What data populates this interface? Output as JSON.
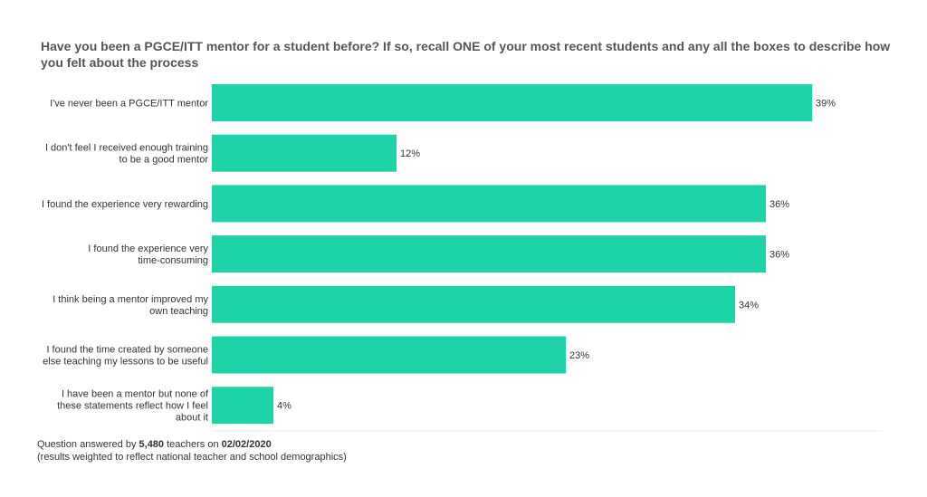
{
  "chart_data": {
    "type": "bar",
    "orientation": "horizontal",
    "title": "Have you been a PGCE/ITT mentor for a student before? If so, recall ONE of your most recent students and any all the boxes to describe how you felt about the process",
    "categories": [
      [
        "I've never been a PGCE/ITT mentor"
      ],
      [
        "I don't feel I received enough training",
        "to be a good mentor"
      ],
      [
        "I found the experience very rewarding"
      ],
      [
        "I found the experience very",
        "time-consuming"
      ],
      [
        "I think being a mentor improved my",
        "own teaching"
      ],
      [
        "I found the time created by someone",
        "else teaching my lessons to be useful"
      ],
      [
        "I have been a mentor but none of",
        "these statements reflect how I feel",
        "about it"
      ]
    ],
    "values": [
      39,
      12,
      36,
      36,
      34,
      23,
      4
    ],
    "value_labels": [
      "39%",
      "12%",
      "36%",
      "36%",
      "34%",
      "23%",
      "4%"
    ],
    "xlim": [
      0,
      40
    ],
    "bar_color": "#1fd3a9",
    "grid": false,
    "legend": "none"
  },
  "footer": {
    "line1_prefix": "Question answered by ",
    "count": "5,480",
    "line1_middle": " teachers on ",
    "date": "02/02/2020",
    "line2": "(results weighted to reflect national teacher and school demographics)"
  }
}
